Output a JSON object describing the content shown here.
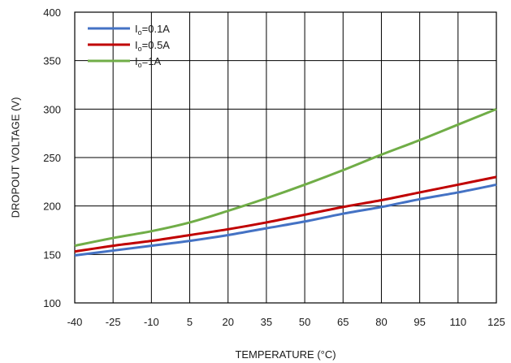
{
  "chart_data": {
    "type": "line",
    "title": "",
    "xlabel": "TEMPERATURE (°C)",
    "ylabel": "DROPOUT VOLTAGE (V)",
    "xlim": [
      -40,
      125
    ],
    "ylim": [
      100,
      400
    ],
    "x_ticks": [
      -40,
      -25,
      -10,
      5,
      20,
      35,
      50,
      65,
      80,
      95,
      110,
      125
    ],
    "y_ticks": [
      100,
      150,
      200,
      250,
      300,
      350,
      400
    ],
    "grid": true,
    "legend_position": "top-left",
    "series": [
      {
        "name": "Io=0.1A",
        "legend_main": "I",
        "legend_sub": "o",
        "legend_rest": "=0.1A",
        "color": "#4472C4",
        "x": [
          -40,
          -25,
          -10,
          5,
          20,
          35,
          50,
          65,
          80,
          95,
          110,
          125
        ],
        "y": [
          149,
          154,
          159,
          164,
          170,
          177,
          184,
          192,
          199,
          207,
          214,
          222
        ]
      },
      {
        "name": "Io=0.5A",
        "legend_main": "I",
        "legend_sub": "o",
        "legend_rest": "=0.5A",
        "color": "#C00000",
        "x": [
          -40,
          -25,
          -10,
          5,
          20,
          35,
          50,
          65,
          80,
          95,
          110,
          125
        ],
        "y": [
          153,
          159,
          164,
          170,
          176,
          183,
          191,
          199,
          206,
          214,
          222,
          230
        ]
      },
      {
        "name": "Io=1A",
        "legend_main": "I",
        "legend_sub": "o",
        "legend_rest": "=1A",
        "color": "#70AD47",
        "x": [
          -40,
          -25,
          -10,
          5,
          20,
          35,
          50,
          65,
          80,
          95,
          110,
          125
        ],
        "y": [
          159,
          167,
          174,
          183,
          195,
          208,
          222,
          237,
          253,
          268,
          284,
          300
        ]
      }
    ]
  }
}
